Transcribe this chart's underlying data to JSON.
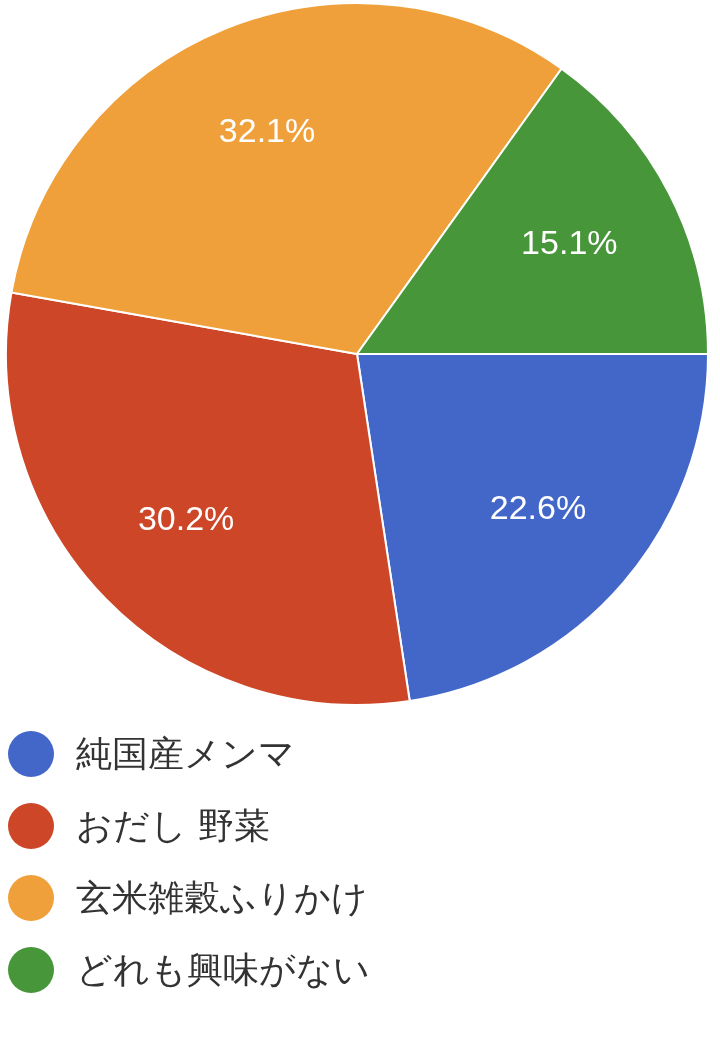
{
  "chart_data": {
    "type": "pie",
    "categories": [
      "純国産メンマ",
      "おだし 野菜",
      "玄米雑穀ふりかけ",
      "どれも興味がない"
    ],
    "values": [
      22.6,
      30.2,
      32.1,
      15.1
    ],
    "colors": [
      "#4267c9",
      "#cc4627",
      "#f0a03a",
      "#48963a"
    ],
    "value_labels": [
      "22.6%",
      "30.2%",
      "32.1%",
      "15.1%"
    ],
    "legend": "bottom"
  }
}
